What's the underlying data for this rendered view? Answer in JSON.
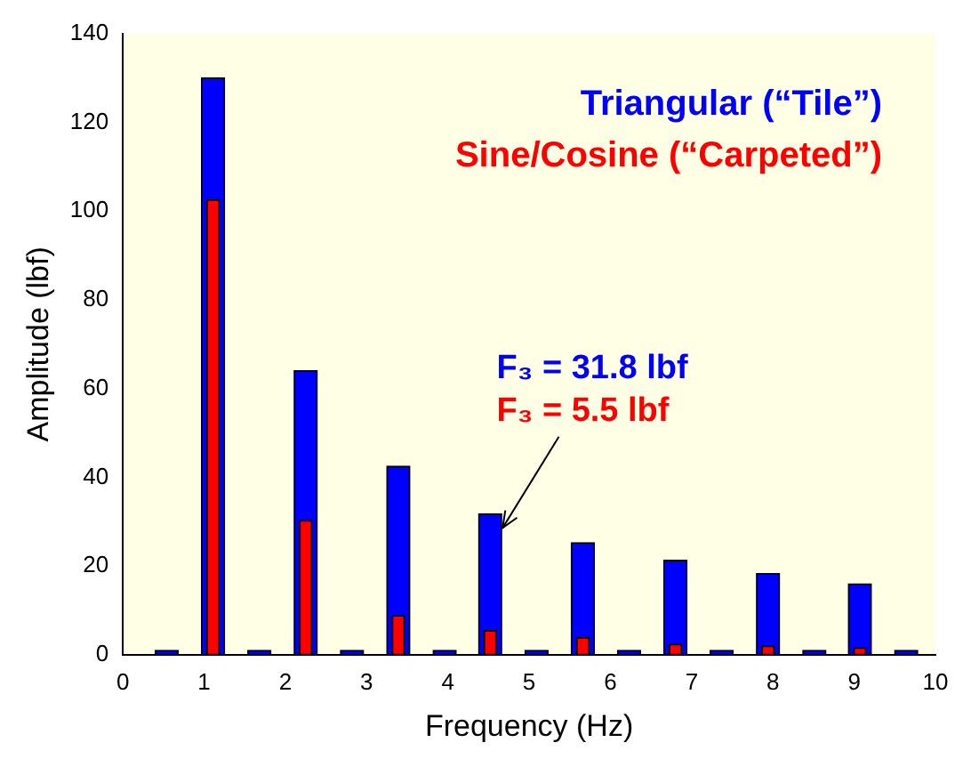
{
  "chart_data": {
    "type": "bar",
    "xlabel": "Frequency (Hz)",
    "ylabel": "Amplitude (lbf)",
    "x": [
      0.54,
      1.11,
      1.68,
      2.25,
      2.82,
      3.39,
      3.96,
      4.52,
      5.09,
      5.66,
      6.23,
      6.8,
      7.37,
      7.94,
      8.51,
      9.07,
      9.64
    ],
    "series": [
      {
        "name": "Triangular (“Tile”)",
        "color": "#0000ff",
        "values": [
          1,
          130,
          1,
          64,
          1,
          42.5,
          1,
          31.8,
          1,
          25.3,
          1,
          21.3,
          1,
          18.3,
          1,
          16,
          1
        ]
      },
      {
        "name": "Sine/Cosine (“Carpeted”)",
        "color": "#ff0000",
        "values": [
          0,
          102.5,
          0,
          30.3,
          0,
          8.9,
          0,
          5.5,
          0,
          3.9,
          0,
          2.4,
          0,
          2,
          0,
          1.6,
          0
        ]
      }
    ],
    "xlim": [
      0,
      10
    ],
    "xticks": [
      0,
      1,
      2,
      3,
      4,
      5,
      6,
      7,
      8,
      9,
      10
    ],
    "ylim": [
      0,
      140
    ],
    "yticks": [
      0,
      20,
      40,
      60,
      80,
      100,
      120,
      140
    ],
    "annotations": [
      "F₃ = 31.8 lbf",
      {
        "text": "F₃ = 5.5 lbf",
        "x": 4.52,
        "y": 31.8
      }
    ],
    "legend": "top right",
    "grid": false
  }
}
